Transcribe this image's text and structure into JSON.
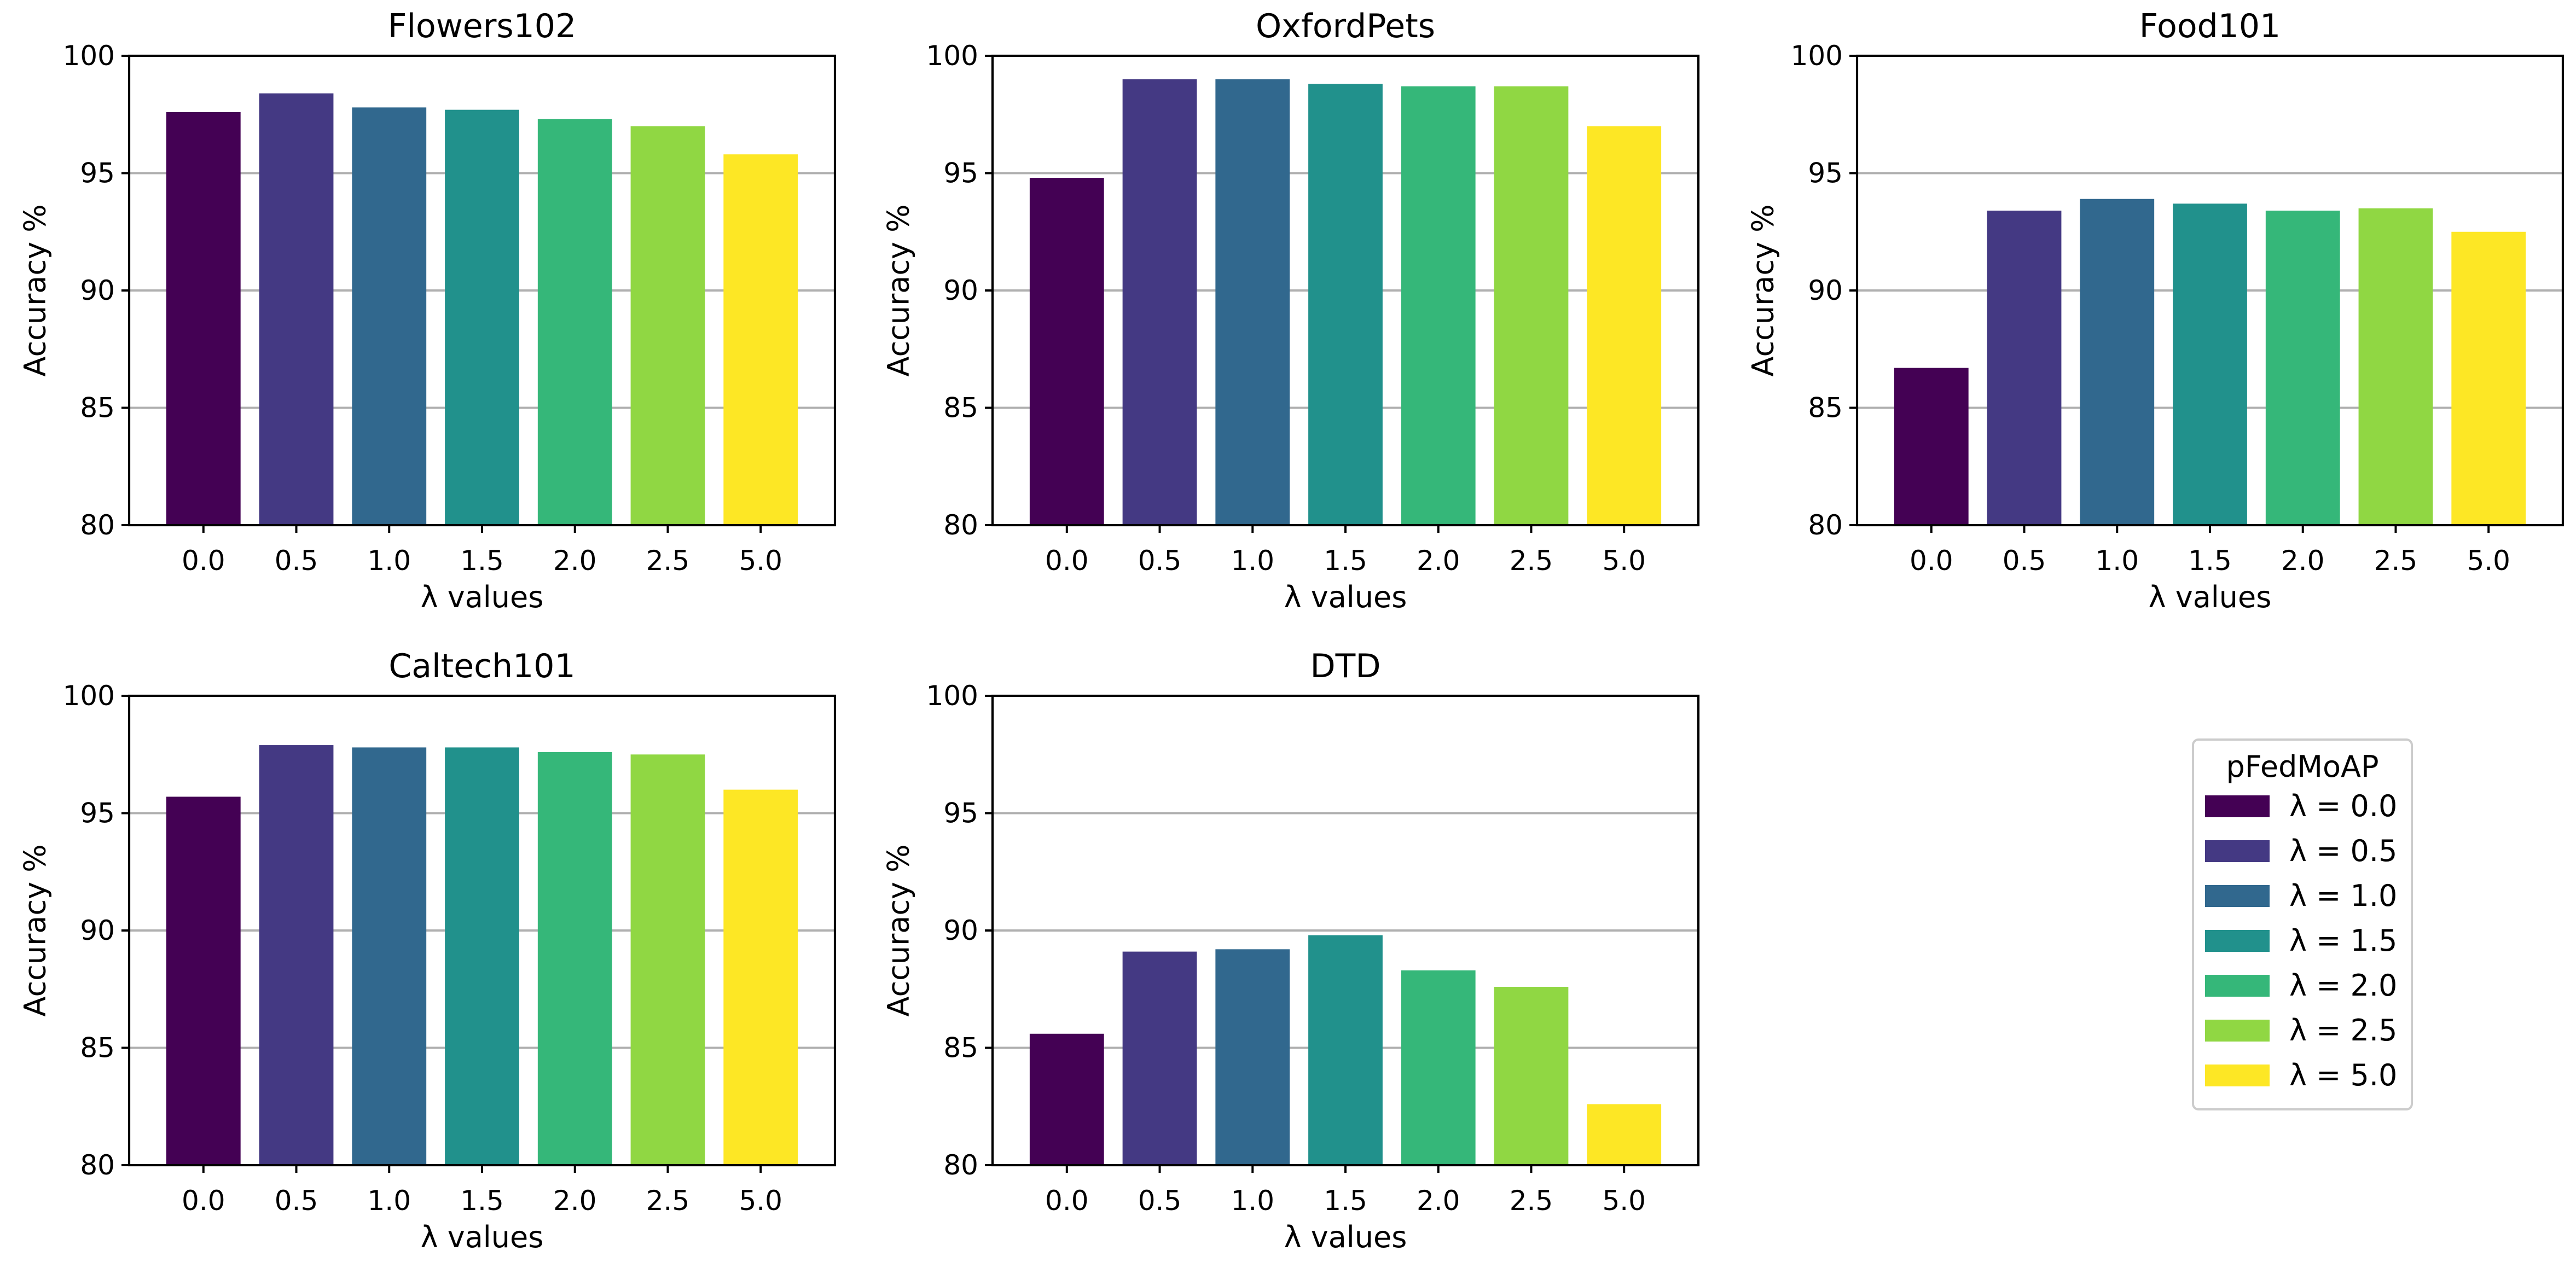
{
  "figure": {
    "legend_title": "pFedMoAP"
  },
  "chart_data": [
    {
      "type": "bar",
      "title": "Flowers102",
      "xlabel": "λ values",
      "ylabel": "Accuracy %",
      "categories": [
        "0.0",
        "0.5",
        "1.0",
        "1.5",
        "2.0",
        "2.5",
        "5.0"
      ],
      "values": [
        97.6,
        98.4,
        97.8,
        97.7,
        97.3,
        97.0,
        95.8
      ],
      "ylim": [
        80,
        100
      ],
      "yticks": [
        "80",
        "85",
        "90",
        "95",
        "100"
      ],
      "grid": "y"
    },
    {
      "type": "bar",
      "title": "OxfordPets",
      "xlabel": "λ values",
      "ylabel": "Accuracy %",
      "categories": [
        "0.0",
        "0.5",
        "1.0",
        "1.5",
        "2.0",
        "2.5",
        "5.0"
      ],
      "values": [
        94.8,
        99.0,
        99.0,
        98.8,
        98.7,
        98.7,
        97.0
      ],
      "ylim": [
        80,
        100
      ],
      "yticks": [
        "80",
        "85",
        "90",
        "95",
        "100"
      ],
      "grid": "y"
    },
    {
      "type": "bar",
      "title": "Food101",
      "xlabel": "λ values",
      "ylabel": "Accuracy %",
      "categories": [
        "0.0",
        "0.5",
        "1.0",
        "1.5",
        "2.0",
        "2.5",
        "5.0"
      ],
      "values": [
        86.7,
        93.4,
        93.9,
        93.7,
        93.4,
        93.5,
        92.5
      ],
      "ylim": [
        80,
        100
      ],
      "yticks": [
        "80",
        "85",
        "90",
        "95",
        "100"
      ],
      "grid": "y"
    },
    {
      "type": "bar",
      "title": "Caltech101",
      "xlabel": "λ values",
      "ylabel": "Accuracy %",
      "categories": [
        "0.0",
        "0.5",
        "1.0",
        "1.5",
        "2.0",
        "2.5",
        "5.0"
      ],
      "values": [
        95.7,
        97.9,
        97.8,
        97.8,
        97.6,
        97.5,
        96.0
      ],
      "ylim": [
        80,
        100
      ],
      "yticks": [
        "80",
        "85",
        "90",
        "95",
        "100"
      ],
      "grid": "y"
    },
    {
      "type": "bar",
      "title": "DTD",
      "xlabel": "λ values",
      "ylabel": "Accuracy %",
      "categories": [
        "0.0",
        "0.5",
        "1.0",
        "1.5",
        "2.0",
        "2.5",
        "5.0"
      ],
      "values": [
        85.6,
        89.1,
        89.2,
        89.8,
        88.3,
        87.6,
        82.6
      ],
      "ylim": [
        80,
        100
      ],
      "yticks": [
        "80",
        "85",
        "90",
        "95",
        "100"
      ],
      "grid": "y"
    }
  ],
  "legend": {
    "entries": [
      "λ = 0.0",
      "λ = 0.5",
      "λ = 1.0",
      "λ = 1.5",
      "λ = 2.0",
      "λ = 2.5",
      "λ = 5.0"
    ],
    "colors": [
      "#440154",
      "#443983",
      "#31688e",
      "#21918c",
      "#35b779",
      "#90d743",
      "#fde725"
    ]
  }
}
